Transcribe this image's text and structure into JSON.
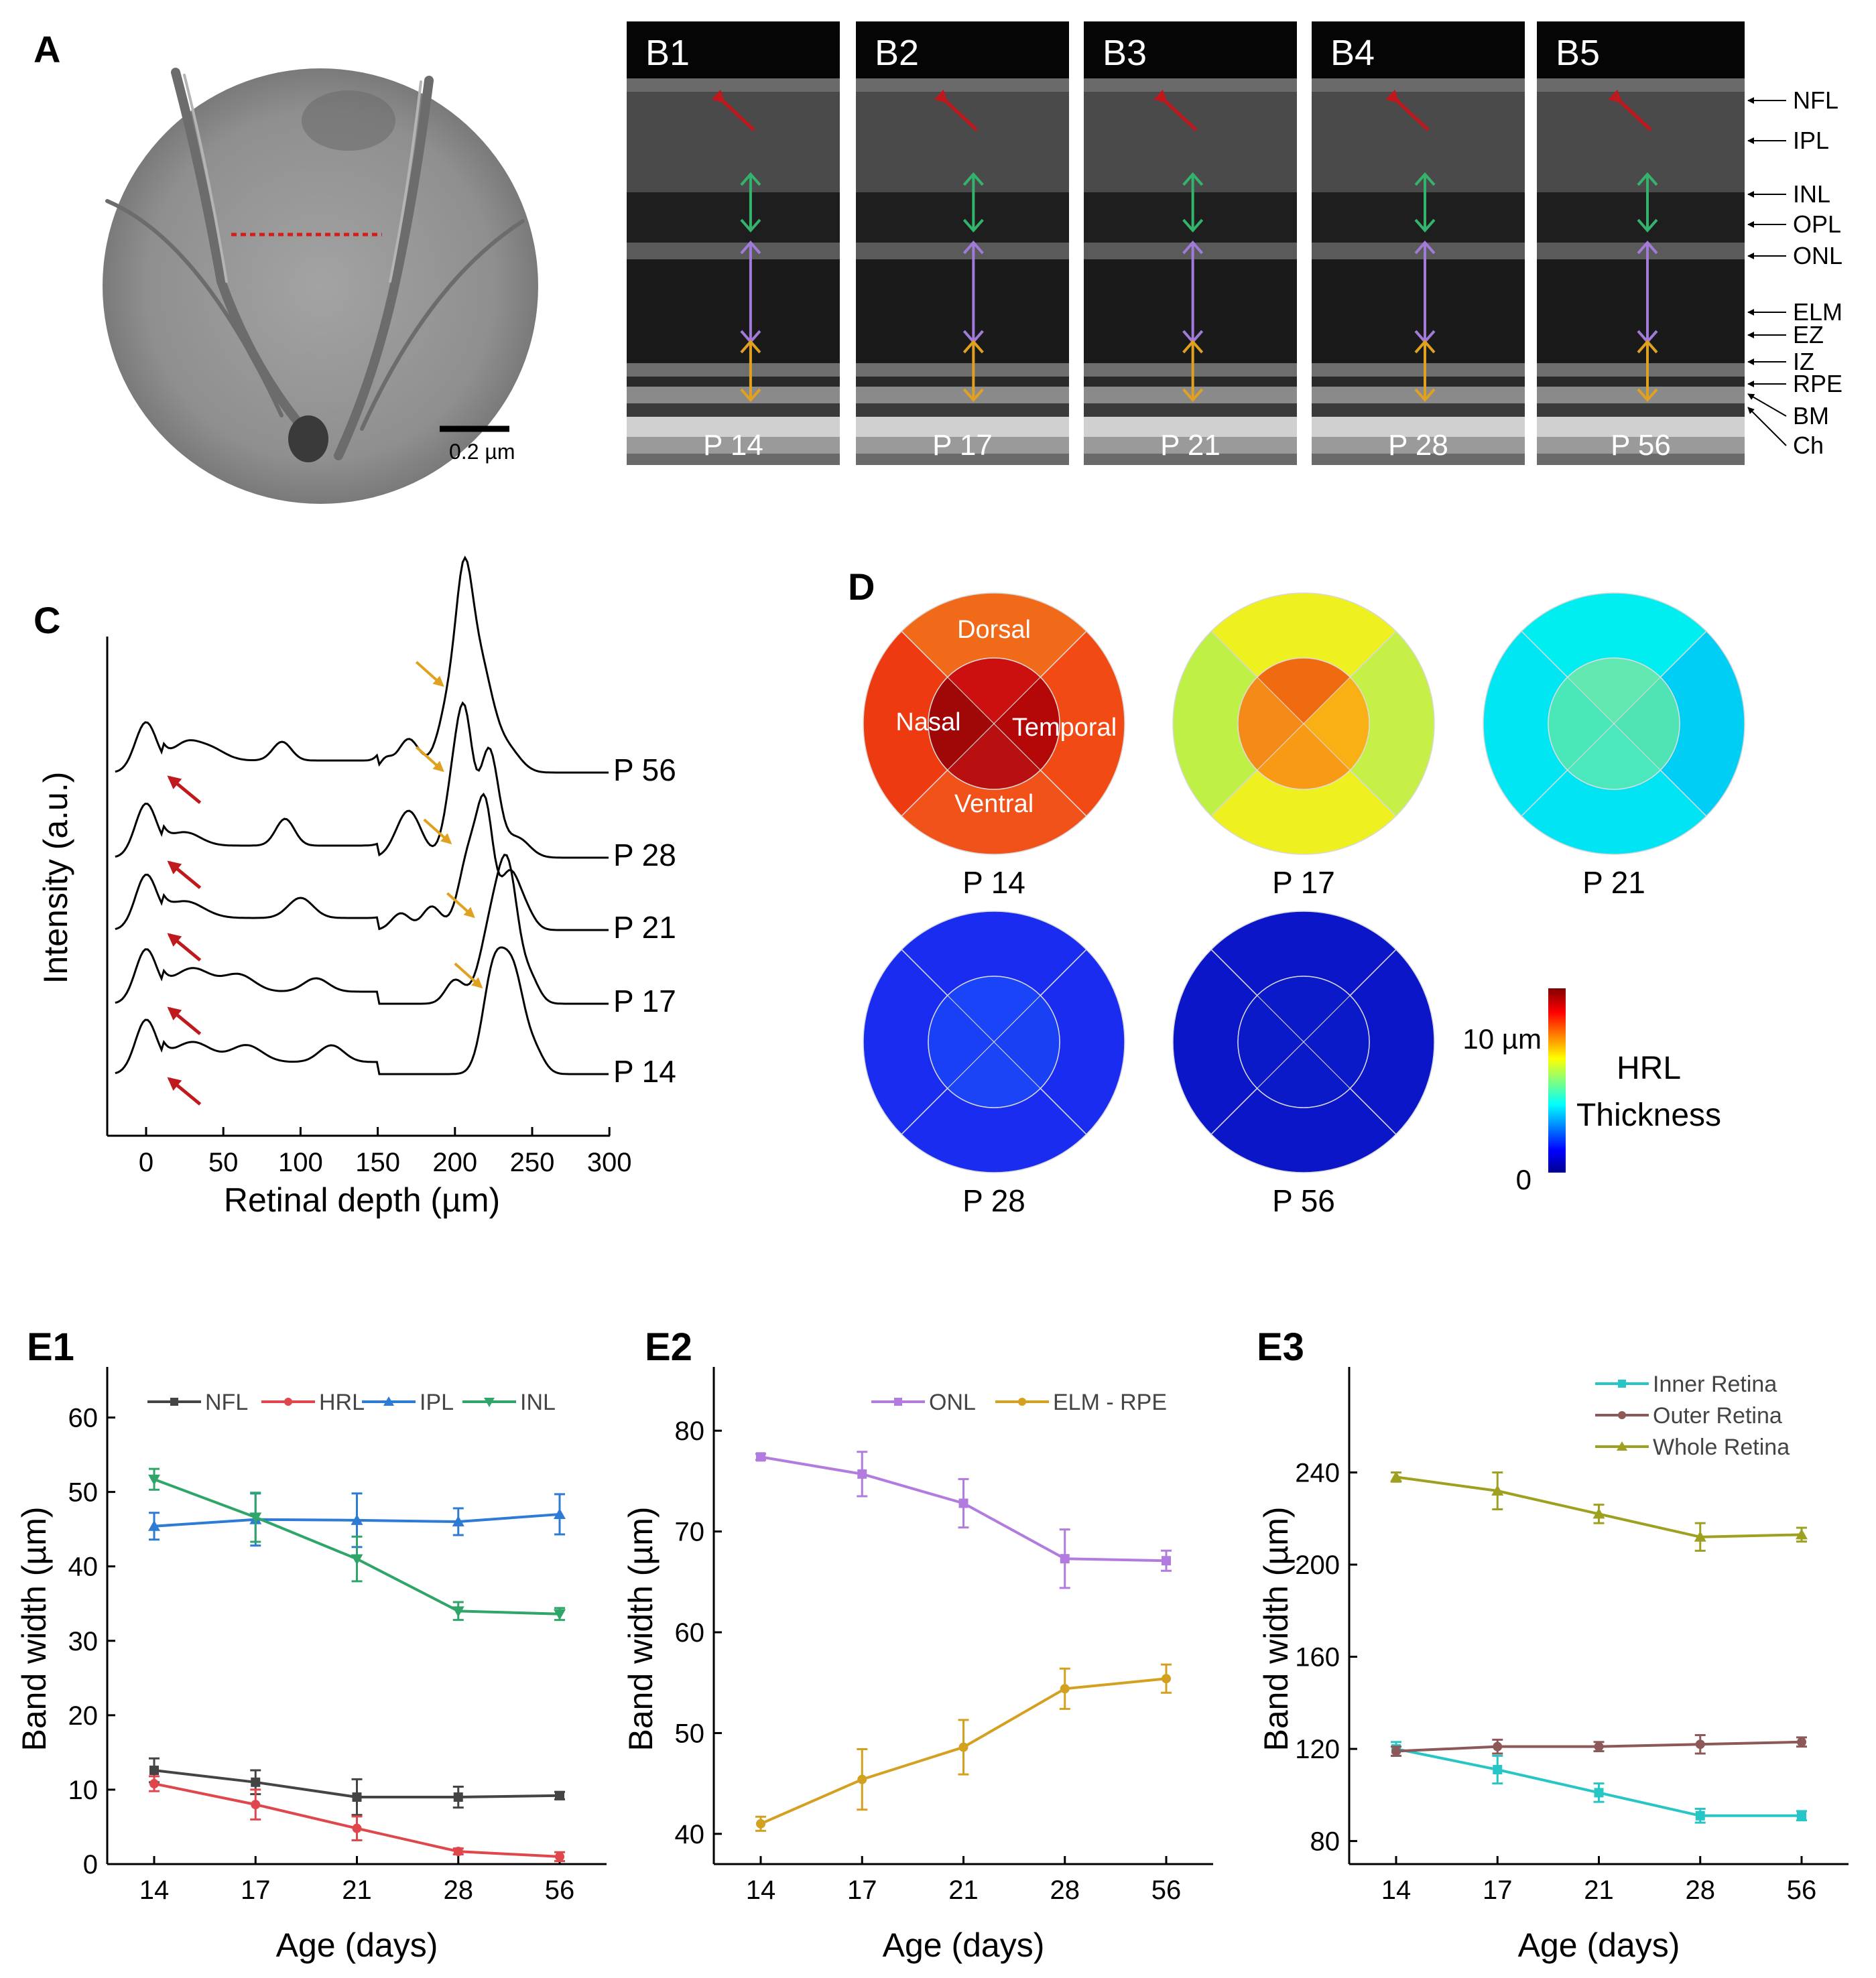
{
  "panels": {
    "a": {
      "label": "A",
      "scalebar": "0.2 µm"
    },
    "b": {
      "frames": [
        {
          "id": "B1",
          "age": "P 14"
        },
        {
          "id": "B2",
          "age": "P 17"
        },
        {
          "id": "B3",
          "age": "P 21"
        },
        {
          "id": "B4",
          "age": "P 28"
        },
        {
          "id": "B5",
          "age": "P 56"
        }
      ],
      "layers": [
        "NFL",
        "IPL",
        "INL",
        "OPL",
        "ONL",
        "ELM",
        "EZ",
        "IZ",
        "RPE",
        "BM",
        "Ch"
      ]
    },
    "c": {
      "label": "C",
      "ylabel": "Intensity (a.u.)",
      "xlabel": "Retinal depth (µm)",
      "xticks": [
        "0",
        "50",
        "100",
        "150",
        "200",
        "250",
        "300"
      ],
      "traces": [
        "P 56",
        "P 28",
        "P 21",
        "P 17",
        "P 14"
      ]
    },
    "d": {
      "label": "D",
      "maps": [
        {
          "age": "P 14"
        },
        {
          "age": "P 17"
        },
        {
          "age": "P 21"
        },
        {
          "age": "P 28"
        },
        {
          "age": "P 56"
        }
      ],
      "sectors": {
        "dorsal": "Dorsal",
        "nasal": "Nasal",
        "temporal": "Temporal",
        "ventral": "Ventral"
      },
      "colorbar": {
        "max_label": "10 µm",
        "min_label": "0",
        "title1": "HRL",
        "title2": "Thickness"
      }
    }
  },
  "chart_data": [
    {
      "id": "E1",
      "type": "line",
      "title": "E1",
      "xlabel": "Age (days)",
      "ylabel": "Band width (µm)",
      "categories": [
        "14",
        "17",
        "21",
        "28",
        "56"
      ],
      "ylim": [
        0,
        65
      ],
      "yticks": [
        "0",
        "10",
        "20",
        "30",
        "40",
        "50",
        "60"
      ],
      "series": [
        {
          "name": "NFL",
          "color": "#444444",
          "values": [
            12.6,
            11.0,
            9.0,
            9.0,
            9.2
          ],
          "err": [
            1.6,
            1.6,
            2.4,
            1.4,
            0.5
          ]
        },
        {
          "name": "HRL",
          "color": "#e0474c",
          "values": [
            10.8,
            8.0,
            4.8,
            1.7,
            1.0
          ],
          "err": [
            1.0,
            2.0,
            1.6,
            0.4,
            0.6
          ]
        },
        {
          "name": "IPL",
          "color": "#2e7bd6",
          "values": [
            45.4,
            46.3,
            46.2,
            46.0,
            47.0
          ],
          "err": [
            1.8,
            3.5,
            3.6,
            1.8,
            2.7
          ]
        },
        {
          "name": "INL",
          "color": "#2fa56a",
          "values": [
            51.7,
            46.6,
            41.0,
            34.0,
            33.6
          ],
          "err": [
            1.4,
            3.3,
            3.0,
            1.2,
            0.8
          ]
        }
      ]
    },
    {
      "id": "E2",
      "type": "line",
      "title": "E2",
      "xlabel": "Age (days)",
      "ylabel": "Band width (µm)",
      "categories": [
        "14",
        "17",
        "21",
        "28",
        "56"
      ],
      "ylim": [
        37,
        85
      ],
      "yticks": [
        "40",
        "50",
        "60",
        "70",
        "80"
      ],
      "series": [
        {
          "name": "ONL",
          "color": "#b27be0",
          "values": [
            77.4,
            75.7,
            72.8,
            67.3,
            67.1
          ],
          "err": [
            0.3,
            2.2,
            2.4,
            2.9,
            1.0
          ]
        },
        {
          "name": "ELM - RPE",
          "color": "#d4a020",
          "values": [
            41.0,
            45.4,
            48.6,
            54.4,
            55.4
          ],
          "err": [
            0.7,
            3.0,
            2.7,
            2.0,
            1.4
          ]
        }
      ]
    },
    {
      "id": "E3",
      "type": "line",
      "title": "E3",
      "xlabel": "Age (days)",
      "ylabel": "Band width (µm)",
      "categories": [
        "14",
        "17",
        "21",
        "28",
        "56"
      ],
      "ylim": [
        70,
        280
      ],
      "yticks": [
        "80",
        "120",
        "160",
        "200",
        "240"
      ],
      "series": [
        {
          "name": "Inner Retina",
          "color": "#27c6c6",
          "values": [
            120,
            111,
            101,
            91,
            91
          ],
          "err": [
            3,
            6,
            4,
            3,
            2
          ]
        },
        {
          "name": "Outer Retina",
          "color": "#8c5858",
          "values": [
            119,
            121,
            121,
            122,
            123
          ],
          "err": [
            2,
            3,
            2,
            4,
            2
          ]
        },
        {
          "name": "Whole Retina",
          "color": "#9ea020",
          "values": [
            238,
            232,
            222,
            212,
            213
          ],
          "err": [
            2,
            8,
            4,
            6,
            3
          ]
        }
      ]
    }
  ]
}
